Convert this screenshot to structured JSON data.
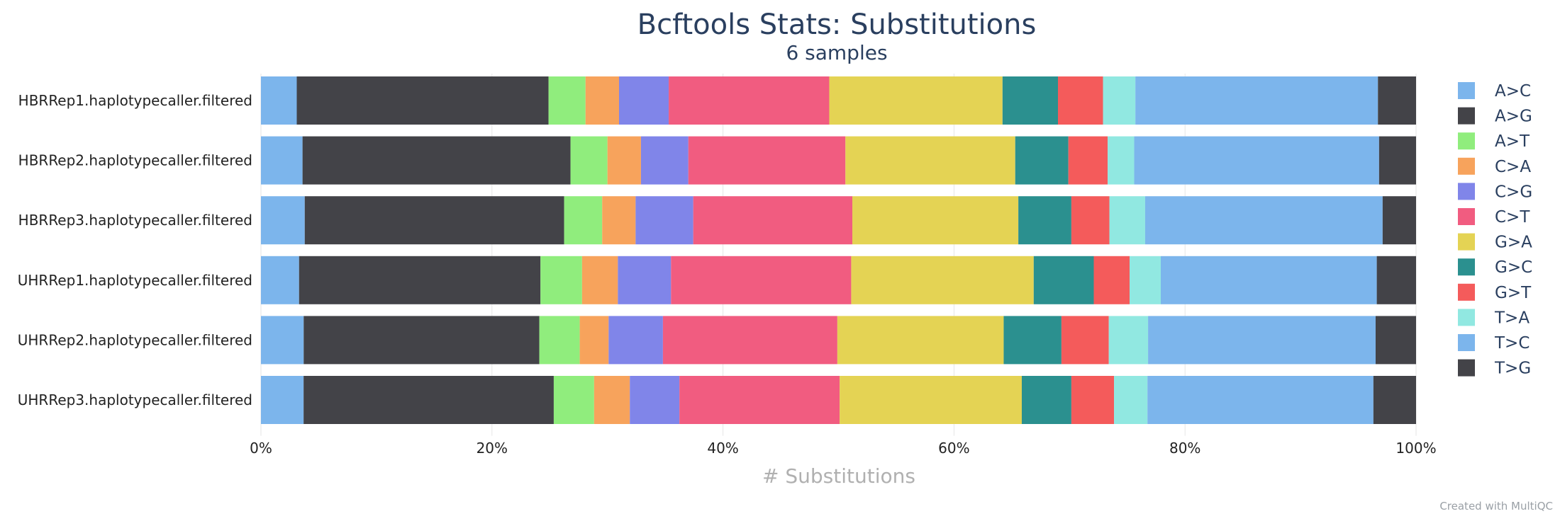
{
  "chart_data": {
    "type": "bar",
    "orientation": "horizontal",
    "stacked": "percent",
    "title": "Bcftools Stats: Substitutions",
    "subtitle": "6 samples",
    "xlabel": "# Substitutions",
    "ylabel": "",
    "xlim": [
      0,
      100
    ],
    "x_ticks": [
      "0%",
      "20%",
      "40%",
      "60%",
      "80%",
      "100%"
    ],
    "grid": true,
    "legend_position": "right",
    "categories": [
      "HBRRep1.haplotypecaller.filtered",
      "HBRRep2.haplotypecaller.filtered",
      "HBRRep3.haplotypecaller.filtered",
      "UHRRep1.haplotypecaller.filtered",
      "UHRRep2.haplotypecaller.filtered",
      "UHRRep3.haplotypecaller.filtered"
    ],
    "series": [
      {
        "name": "A>C",
        "color": "#7cb5ec",
        "values": [
          3.1,
          3.6,
          3.8,
          3.3,
          3.7,
          3.7
        ]
      },
      {
        "name": "A>G",
        "color": "#434348",
        "values": [
          21.8,
          23.2,
          22.5,
          20.9,
          20.4,
          21.7
        ]
      },
      {
        "name": "A>T",
        "color": "#90ed7d",
        "values": [
          3.2,
          3.2,
          3.3,
          3.6,
          3.5,
          3.5
        ]
      },
      {
        "name": "C>A",
        "color": "#f7a35c",
        "values": [
          2.9,
          2.9,
          2.9,
          3.1,
          2.5,
          3.1
        ]
      },
      {
        "name": "C>G",
        "color": "#8085e9",
        "values": [
          4.3,
          4.1,
          5.0,
          4.6,
          4.7,
          4.3
        ]
      },
      {
        "name": "C>T",
        "color": "#f15c80",
        "values": [
          13.9,
          13.6,
          13.8,
          15.6,
          15.1,
          13.9
        ]
      },
      {
        "name": "G>A",
        "color": "#e4d354",
        "values": [
          15.0,
          14.7,
          14.4,
          15.8,
          14.4,
          15.8
        ]
      },
      {
        "name": "G>C",
        "color": "#2b908f",
        "values": [
          4.8,
          4.6,
          4.6,
          5.2,
          5.0,
          4.3
        ]
      },
      {
        "name": "G>T",
        "color": "#f45b5b",
        "values": [
          3.9,
          3.4,
          3.3,
          3.1,
          4.1,
          3.7
        ]
      },
      {
        "name": "T>A",
        "color": "#91e8e1",
        "values": [
          2.8,
          2.3,
          3.1,
          2.7,
          3.4,
          2.9
        ]
      },
      {
        "name": "T>C",
        "color": "#7cb5ec",
        "values": [
          21.0,
          21.2,
          20.6,
          18.7,
          19.7,
          19.6
        ]
      },
      {
        "name": "T>G",
        "color": "#434348",
        "values": [
          3.3,
          3.2,
          2.9,
          3.4,
          3.5,
          3.7
        ]
      }
    ]
  },
  "credit": "Created with MultiQC"
}
